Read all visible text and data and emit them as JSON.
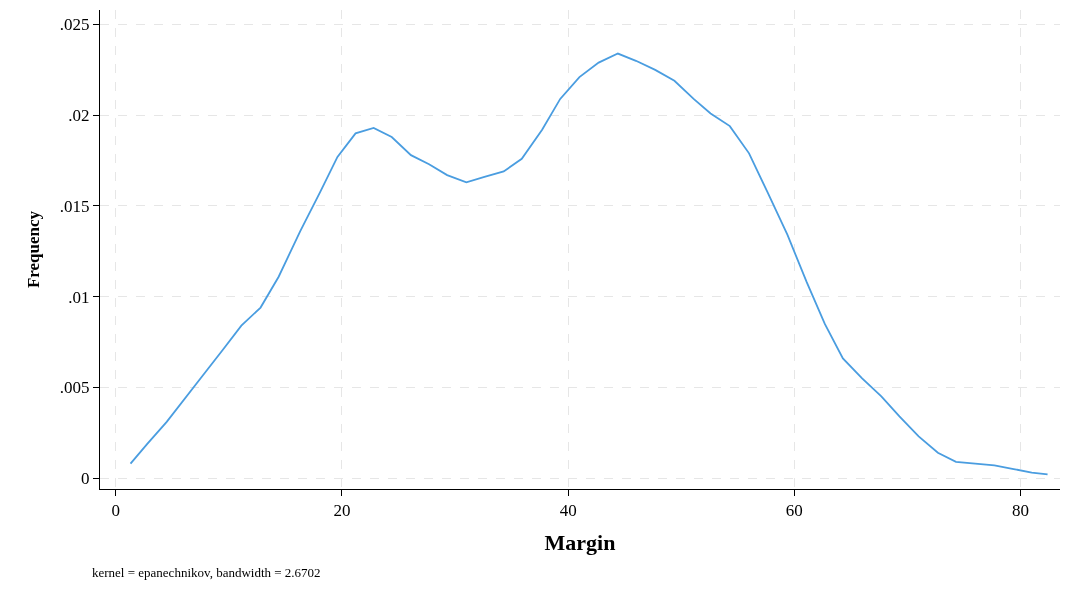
{
  "chart_data": {
    "type": "line",
    "xlabel": "Margin",
    "ylabel": "Frequency",
    "annotations": [
      "kernel = epanechnikov, bandwidth = 2.6702"
    ],
    "x": [
      1.3,
      2.8,
      4.5,
      7.5,
      9.5,
      11.1,
      12.8,
      14.4,
      16.3,
      18.1,
      19.6,
      21.2,
      22.8,
      24.4,
      26.1,
      27.7,
      29.3,
      31.0,
      32.6,
      34.3,
      35.9,
      37.7,
      39.3,
      41.0,
      42.7,
      44.4,
      46.0,
      47.7,
      49.4,
      51.1,
      52.6,
      54.3,
      56.0,
      57.6,
      59.4,
      61.1,
      62.7,
      64.3,
      66.0,
      67.7,
      69.3,
      71.0,
      72.7,
      74.3,
      76.0,
      77.7,
      79.4,
      81.0,
      82.4
    ],
    "series": [
      {
        "color": "#4a9de0",
        "values": [
          0.0008,
          0.0019,
          0.0031,
          0.0055,
          0.0071,
          0.0084,
          0.0094,
          0.0111,
          0.0136,
          0.0158,
          0.0177,
          0.019,
          0.0193,
          0.0188,
          0.0178,
          0.0173,
          0.0167,
          0.0163,
          0.0166,
          0.0169,
          0.0176,
          0.0192,
          0.0209,
          0.0221,
          0.0229,
          0.0234,
          0.023,
          0.0225,
          0.0219,
          0.0209,
          0.0201,
          0.0194,
          0.0179,
          0.0158,
          0.0134,
          0.0108,
          0.0085,
          0.0066,
          0.0055,
          0.0045,
          0.0034,
          0.0023,
          0.0014,
          0.0009,
          0.0008,
          0.0007,
          0.0005,
          0.0003,
          0.0002
        ]
      }
    ],
    "xlim": [
      -1.4,
      83.5
    ],
    "xticks": [
      0,
      20,
      40,
      60,
      80
    ],
    "ylim": [
      -0.0006,
      0.0258
    ],
    "yticks": [
      {
        "value": 0,
        "label": "0"
      },
      {
        "value": 0.005,
        "label": ".005"
      },
      {
        "value": 0.01,
        "label": ".01"
      },
      {
        "value": 0.015,
        "label": ".015"
      },
      {
        "value": 0.02,
        "label": ".02"
      },
      {
        "value": 0.025,
        "label": ".025"
      }
    ],
    "grid": true,
    "line_style": "solid",
    "marker": "none"
  }
}
